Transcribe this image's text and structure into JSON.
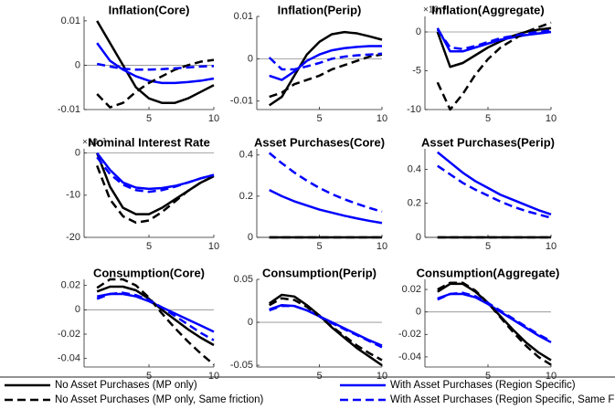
{
  "chart_data": [
    {
      "type": "line",
      "title": "Inflation(Core)",
      "x": [
        1,
        2,
        3,
        4,
        5,
        6,
        7,
        8,
        9,
        10
      ],
      "xlim": [
        0,
        10
      ],
      "xticks": [
        5,
        10
      ],
      "ylim": [
        -0.01,
        0.011
      ],
      "yticks": [
        -0.01,
        0,
        0.01
      ],
      "zero_line": true,
      "series": [
        {
          "name": "No Asset Purchases (MP only)",
          "color": "#000000",
          "dashed": false,
          "values": [
            0.01,
            0.005,
            0.0,
            -0.005,
            -0.0075,
            -0.0085,
            -0.0085,
            -0.0075,
            -0.006,
            -0.0045
          ]
        },
        {
          "name": "With Asset Purchases (Region Specific)",
          "color": "#0000ff",
          "dashed": false,
          "values": [
            0.005,
            0.001,
            -0.001,
            -0.0025,
            -0.0035,
            -0.004,
            -0.004,
            -0.0038,
            -0.0035,
            -0.003
          ]
        },
        {
          "name": "No Asset Purchases (MP only, Same friction)",
          "color": "#000000",
          "dashed": true,
          "values": [
            -0.0065,
            -0.0095,
            -0.0085,
            -0.006,
            -0.004,
            -0.0025,
            -0.001,
            0,
            0.0008,
            0.0012
          ]
        },
        {
          "name": "With Asset Purchases (Region Specific, Same Frictic",
          "color": "#0000ff",
          "dashed": true,
          "values": [
            0.0003,
            -0.0003,
            -0.0008,
            -0.001,
            -0.001,
            -0.0009,
            -0.0007,
            -0.0005,
            -0.0003,
            -0.0002
          ]
        }
      ]
    },
    {
      "type": "line",
      "title": "Inflation(Perip)",
      "x": [
        1,
        2,
        3,
        4,
        5,
        6,
        7,
        8,
        9,
        10
      ],
      "xlim": [
        0,
        10
      ],
      "xticks": [
        5,
        10
      ],
      "ylim": [
        -0.012,
        0.01
      ],
      "yticks": [
        -0.01,
        0,
        0.01
      ],
      "zero_line": true,
      "series": [
        {
          "color": "#000000",
          "dashed": false,
          "values": [
            -0.011,
            -0.009,
            -0.004,
            0.001,
            0.004,
            0.0058,
            0.0063,
            0.006,
            0.0053,
            0.0045
          ]
        },
        {
          "color": "#0000ff",
          "dashed": false,
          "values": [
            -0.004,
            -0.005,
            -0.003,
            -0.0005,
            0.001,
            0.002,
            0.0025,
            0.0028,
            0.003,
            0.003
          ]
        },
        {
          "color": "#000000",
          "dashed": true,
          "values": [
            -0.009,
            -0.008,
            -0.006,
            -0.005,
            -0.004,
            -0.0025,
            -0.0015,
            -0.0005,
            0.0005,
            0.001
          ]
        },
        {
          "color": "#0000ff",
          "dashed": true,
          "values": [
            0.0003,
            -0.0025,
            -0.0025,
            -0.0018,
            -0.001,
            0,
            0.0005,
            0.0008,
            0.001,
            0.0012
          ]
        }
      ]
    },
    {
      "type": "line",
      "title": "Inflation(Aggregate)",
      "y_multiplier": "×10⁻³",
      "x": [
        1,
        2,
        3,
        4,
        5,
        6,
        7,
        8,
        9,
        10
      ],
      "xlim": [
        0,
        10
      ],
      "xticks": [
        5,
        10
      ],
      "ylim": [
        -10,
        2
      ],
      "yticks": [
        -10,
        -5,
        0
      ],
      "zero_line": true,
      "series": [
        {
          "color": "#000000",
          "dashed": false,
          "values": [
            0,
            -4.5,
            -4,
            -3,
            -2,
            -1.2,
            -0.5,
            0,
            0.3,
            0.5
          ]
        },
        {
          "color": "#0000ff",
          "dashed": false,
          "values": [
            0.5,
            -2.5,
            -2.5,
            -2,
            -1.5,
            -1,
            -0.7,
            -0.4,
            -0.2,
            0
          ]
        },
        {
          "color": "#000000",
          "dashed": true,
          "values": [
            -6.5,
            -10,
            -8,
            -5.5,
            -3.5,
            -2,
            -1,
            0,
            0.6,
            1.2
          ]
        },
        {
          "color": "#0000ff",
          "dashed": true,
          "values": [
            0.3,
            -2,
            -2.2,
            -1.8,
            -1.3,
            -0.8,
            -0.5,
            -0.2,
            0,
            0.2
          ]
        }
      ]
    },
    {
      "type": "line",
      "title": "Nominal Interest Rate",
      "y_multiplier": "×10⁻³",
      "x": [
        1,
        2,
        3,
        4,
        5,
        6,
        7,
        8,
        9,
        10
      ],
      "xlim": [
        0,
        10
      ],
      "xticks": [
        5,
        10
      ],
      "ylim": [
        -20,
        1
      ],
      "yticks": [
        -20,
        -10,
        0
      ],
      "zero_line": true,
      "series": [
        {
          "color": "#000000",
          "dashed": false,
          "values": [
            0,
            -8,
            -13,
            -14.5,
            -14.5,
            -13,
            -11,
            -9,
            -7,
            -5.5
          ]
        },
        {
          "color": "#0000ff",
          "dashed": false,
          "values": [
            0,
            -4,
            -7,
            -8.2,
            -8.5,
            -8.3,
            -7.8,
            -7,
            -6,
            -5.2
          ]
        },
        {
          "color": "#000000",
          "dashed": true,
          "values": [
            -3,
            -11,
            -15,
            -16.5,
            -16,
            -14,
            -11.5,
            -9,
            -7,
            -5.5
          ]
        },
        {
          "color": "#0000ff",
          "dashed": true,
          "values": [
            -1,
            -5,
            -7.5,
            -8.8,
            -9.2,
            -8.8,
            -8,
            -7,
            -6,
            -5.2
          ]
        }
      ]
    },
    {
      "type": "line",
      "title": "Asset Purchases(Core)",
      "x": [
        1,
        2,
        3,
        4,
        5,
        6,
        7,
        8,
        9,
        10
      ],
      "xlim": [
        0,
        10
      ],
      "xticks": [
        5,
        10
      ],
      "ylim": [
        0,
        0.43
      ],
      "yticks": [
        0,
        0.2,
        0.4
      ],
      "zero_line": true,
      "series": [
        {
          "color": "#000000",
          "dashed": false,
          "values": [
            0,
            0,
            0,
            0,
            0,
            0,
            0,
            0,
            0,
            0
          ]
        },
        {
          "color": "#0000ff",
          "dashed": false,
          "values": [
            0.23,
            0.2,
            0.175,
            0.155,
            0.135,
            0.12,
            0.105,
            0.092,
            0.08,
            0.07
          ]
        },
        {
          "color": "#000000",
          "dashed": true,
          "values": [
            0,
            0,
            0,
            0,
            0,
            0,
            0,
            0,
            0,
            0
          ]
        },
        {
          "color": "#0000ff",
          "dashed": true,
          "values": [
            0.41,
            0.36,
            0.315,
            0.275,
            0.24,
            0.21,
            0.185,
            0.163,
            0.143,
            0.125
          ]
        }
      ]
    },
    {
      "type": "line",
      "title": "Asset Purchases(Perip)",
      "x": [
        1,
        2,
        3,
        4,
        5,
        6,
        7,
        8,
        9,
        10
      ],
      "xlim": [
        0,
        10
      ],
      "xticks": [
        5,
        10
      ],
      "ylim": [
        0,
        0.52
      ],
      "yticks": [
        0,
        0.2,
        0.4
      ],
      "zero_line": true,
      "series": [
        {
          "color": "#000000",
          "dashed": false,
          "values": [
            0,
            0,
            0,
            0,
            0,
            0,
            0,
            0,
            0,
            0
          ]
        },
        {
          "color": "#0000ff",
          "dashed": false,
          "values": [
            0.5,
            0.44,
            0.38,
            0.33,
            0.29,
            0.25,
            0.22,
            0.19,
            0.16,
            0.135
          ]
        },
        {
          "color": "#000000",
          "dashed": true,
          "values": [
            0,
            0,
            0,
            0,
            0,
            0,
            0,
            0,
            0,
            0
          ]
        },
        {
          "color": "#0000ff",
          "dashed": true,
          "values": [
            0.42,
            0.37,
            0.32,
            0.28,
            0.245,
            0.21,
            0.18,
            0.155,
            0.135,
            0.115
          ]
        }
      ]
    },
    {
      "type": "line",
      "title": "Consumption(Core)",
      "x": [
        1,
        2,
        3,
        4,
        5,
        6,
        7,
        8,
        9,
        10
      ],
      "xlim": [
        0,
        10
      ],
      "xticks": [
        5,
        10
      ],
      "ylim": [
        -0.047,
        0.025
      ],
      "yticks": [
        -0.04,
        -0.02,
        0,
        0.02
      ],
      "zero_line": true,
      "series": [
        {
          "color": "#000000",
          "dashed": false,
          "values": [
            0.015,
            0.019,
            0.019,
            0.016,
            0.009,
            0,
            -0.008,
            -0.016,
            -0.023,
            -0.029
          ]
        },
        {
          "color": "#0000ff",
          "dashed": false,
          "values": [
            0.011,
            0.013,
            0.013,
            0.011,
            0.007,
            0.002,
            -0.003,
            -0.008,
            -0.013,
            -0.018
          ]
        },
        {
          "color": "#000000",
          "dashed": true,
          "values": [
            0.018,
            0.025,
            0.025,
            0.02,
            0.01,
            -0.003,
            -0.015,
            -0.026,
            -0.036,
            -0.045
          ]
        },
        {
          "color": "#0000ff",
          "dashed": true,
          "values": [
            0.009,
            0.013,
            0.014,
            0.012,
            0.008,
            0.002,
            -0.005,
            -0.012,
            -0.019,
            -0.025
          ]
        }
      ]
    },
    {
      "type": "line",
      "title": "Consumption(Perip)",
      "x": [
        1,
        2,
        3,
        4,
        5,
        6,
        7,
        8,
        9,
        10
      ],
      "xlim": [
        0,
        10
      ],
      "xticks": [
        5,
        10
      ],
      "ylim": [
        -0.052,
        0.05
      ],
      "yticks": [
        -0.05,
        0,
        0.05
      ],
      "zero_line": true,
      "series": [
        {
          "color": "#000000",
          "dashed": false,
          "values": [
            0.022,
            0.032,
            0.03,
            0.02,
            0.008,
            -0.006,
            -0.018,
            -0.03,
            -0.04,
            -0.05
          ]
        },
        {
          "color": "#0000ff",
          "dashed": false,
          "values": [
            0.015,
            0.02,
            0.019,
            0.014,
            0.007,
            0,
            -0.007,
            -0.014,
            -0.021,
            -0.027
          ]
        },
        {
          "color": "#000000",
          "dashed": true,
          "values": [
            0.02,
            0.028,
            0.026,
            0.018,
            0.007,
            -0.005,
            -0.016,
            -0.027,
            -0.036,
            -0.044
          ]
        },
        {
          "color": "#0000ff",
          "dashed": true,
          "values": [
            0.014,
            0.019,
            0.019,
            0.014,
            0.007,
            -0.001,
            -0.008,
            -0.015,
            -0.022,
            -0.029
          ]
        }
      ]
    },
    {
      "type": "line",
      "title": "Consumption(Aggregate)",
      "x": [
        1,
        2,
        3,
        4,
        5,
        6,
        7,
        8,
        9,
        10
      ],
      "xlim": [
        0,
        10
      ],
      "xticks": [
        5,
        10
      ],
      "ylim": [
        -0.049,
        0.029
      ],
      "yticks": [
        -0.04,
        -0.02,
        0,
        0.02
      ],
      "zero_line": true,
      "series": [
        {
          "color": "#000000",
          "dashed": false,
          "values": [
            0.018,
            0.025,
            0.025,
            0.018,
            0.008,
            -0.004,
            -0.016,
            -0.027,
            -0.036,
            -0.043
          ]
        },
        {
          "color": "#0000ff",
          "dashed": false,
          "values": [
            0.012,
            0.016,
            0.016,
            0.013,
            0.007,
            0,
            -0.007,
            -0.014,
            -0.021,
            -0.027
          ]
        },
        {
          "color": "#000000",
          "dashed": true,
          "values": [
            0.02,
            0.026,
            0.026,
            0.019,
            0.008,
            -0.005,
            -0.018,
            -0.03,
            -0.04,
            -0.047
          ]
        },
        {
          "color": "#0000ff",
          "dashed": true,
          "values": [
            0.011,
            0.016,
            0.017,
            0.014,
            0.008,
            0.001,
            -0.006,
            -0.013,
            -0.02,
            -0.026
          ]
        }
      ]
    }
  ]
}
